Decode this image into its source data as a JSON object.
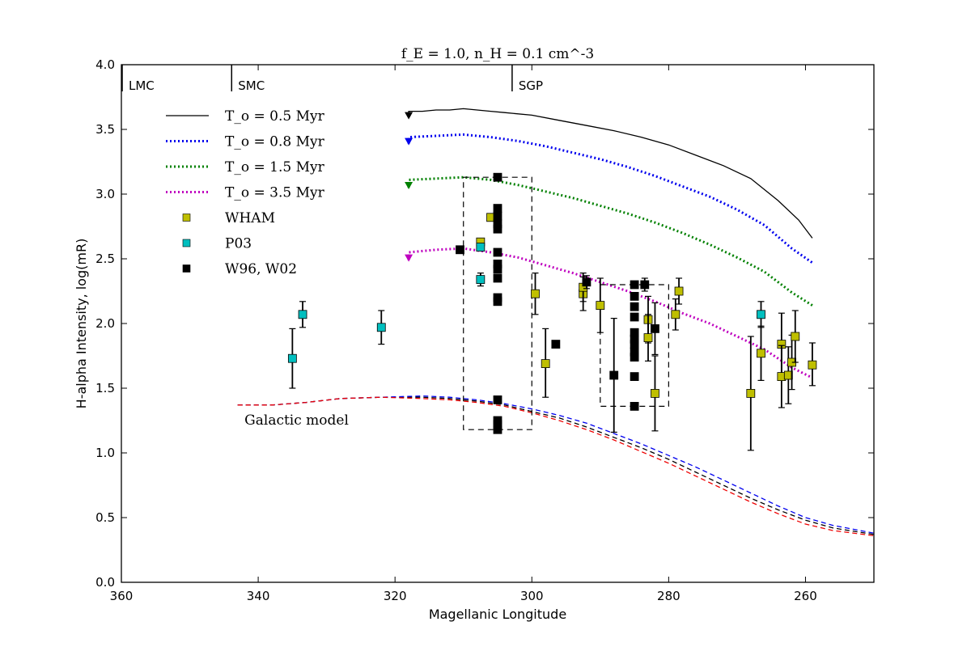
{
  "chart_data": {
    "type": "scatter",
    "title": "f_E = 1.0,  n_H = 0.1 cm^-3",
    "xlabel": "Magellanic Longitude",
    "ylabel": "H-alpha Intensity, log(mR)",
    "xlim": [
      360,
      250
    ],
    "ylim": [
      0.0,
      4.0
    ],
    "x_ticks": [
      360,
      340,
      320,
      300,
      280,
      260
    ],
    "y_ticks": [
      0.0,
      0.5,
      1.0,
      1.5,
      2.0,
      2.5,
      3.0,
      3.5,
      4.0
    ],
    "markers": [
      {
        "label": "LMC",
        "x": 360
      },
      {
        "label": "SMC",
        "x": 344
      },
      {
        "label": "SGP",
        "x": 303
      }
    ],
    "model_annotation": "Galactic model",
    "model_series": [
      {
        "name": "T_o = 0.5 Myr",
        "color": "#000000",
        "style": "solid",
        "arrow": true,
        "points": [
          [
            318,
            3.59
          ],
          [
            318,
            3.64
          ],
          [
            316,
            3.64
          ],
          [
            314,
            3.65
          ],
          [
            312,
            3.65
          ],
          [
            310,
            3.66
          ],
          [
            308,
            3.65
          ],
          [
            306,
            3.64
          ],
          [
            304,
            3.63
          ],
          [
            300,
            3.61
          ],
          [
            296,
            3.57
          ],
          [
            292,
            3.53
          ],
          [
            288,
            3.49
          ],
          [
            284,
            3.44
          ],
          [
            280,
            3.38
          ],
          [
            276,
            3.3
          ],
          [
            272,
            3.22
          ],
          [
            268,
            3.12
          ],
          [
            264,
            2.95
          ],
          [
            261,
            2.8
          ],
          [
            259,
            2.66
          ]
        ]
      },
      {
        "name": "T_o = 0.8 Myr",
        "color": "#0000ee",
        "style": "dotted",
        "arrow": true,
        "points": [
          [
            318,
            3.39
          ],
          [
            318,
            3.44
          ],
          [
            314,
            3.45
          ],
          [
            310,
            3.46
          ],
          [
            306,
            3.44
          ],
          [
            302,
            3.41
          ],
          [
            298,
            3.37
          ],
          [
            294,
            3.32
          ],
          [
            290,
            3.27
          ],
          [
            286,
            3.21
          ],
          [
            282,
            3.14
          ],
          [
            278,
            3.06
          ],
          [
            274,
            2.98
          ],
          [
            270,
            2.88
          ],
          [
            266,
            2.76
          ],
          [
            262,
            2.58
          ],
          [
            259,
            2.47
          ]
        ]
      },
      {
        "name": "T_o = 1.5 Myr",
        "color": "#008000",
        "style": "dotted",
        "arrow": true,
        "points": [
          [
            318,
            3.05
          ],
          [
            318,
            3.11
          ],
          [
            314,
            3.12
          ],
          [
            310,
            3.13
          ],
          [
            306,
            3.11
          ],
          [
            302,
            3.07
          ],
          [
            298,
            3.02
          ],
          [
            294,
            2.97
          ],
          [
            290,
            2.91
          ],
          [
            286,
            2.85
          ],
          [
            282,
            2.78
          ],
          [
            278,
            2.7
          ],
          [
            274,
            2.61
          ],
          [
            270,
            2.51
          ],
          [
            266,
            2.4
          ],
          [
            262,
            2.24
          ],
          [
            259,
            2.14
          ]
        ]
      },
      {
        "name": "T_o = 3.5 Myr",
        "color": "#bf00bf",
        "style": "dotted",
        "arrow": true,
        "points": [
          [
            318,
            2.49
          ],
          [
            318,
            2.55
          ],
          [
            314,
            2.57
          ],
          [
            310,
            2.58
          ],
          [
            306,
            2.55
          ],
          [
            302,
            2.51
          ],
          [
            298,
            2.45
          ],
          [
            294,
            2.39
          ],
          [
            290,
            2.32
          ],
          [
            286,
            2.25
          ],
          [
            282,
            2.17
          ],
          [
            278,
            2.08
          ],
          [
            274,
            2.0
          ],
          [
            270,
            1.9
          ],
          [
            266,
            1.8
          ],
          [
            262,
            1.66
          ],
          [
            259,
            1.58
          ]
        ]
      },
      {
        "name": "Galactic model (black)",
        "color": "#000000",
        "style": "dashed",
        "arrow": false,
        "points": [
          [
            343,
            1.37
          ],
          [
            338,
            1.37
          ],
          [
            333,
            1.39
          ],
          [
            328,
            1.42
          ],
          [
            322,
            1.43
          ],
          [
            316,
            1.43
          ],
          [
            312,
            1.42
          ],
          [
            308,
            1.4
          ],
          [
            304,
            1.37
          ],
          [
            300,
            1.32
          ],
          [
            296,
            1.27
          ],
          [
            292,
            1.2
          ],
          [
            288,
            1.12
          ],
          [
            284,
            1.04
          ],
          [
            280,
            0.95
          ],
          [
            276,
            0.85
          ],
          [
            272,
            0.75
          ],
          [
            268,
            0.65
          ],
          [
            264,
            0.56
          ],
          [
            260,
            0.48
          ],
          [
            256,
            0.42
          ],
          [
            250,
            0.37
          ]
        ]
      },
      {
        "name": "Galactic model (blue)",
        "color": "#0000ee",
        "style": "dashed",
        "arrow": false,
        "points": [
          [
            343,
            1.37
          ],
          [
            338,
            1.37
          ],
          [
            333,
            1.39
          ],
          [
            328,
            1.42
          ],
          [
            322,
            1.43
          ],
          [
            316,
            1.44
          ],
          [
            312,
            1.43
          ],
          [
            308,
            1.41
          ],
          [
            304,
            1.38
          ],
          [
            300,
            1.34
          ],
          [
            296,
            1.29
          ],
          [
            292,
            1.23
          ],
          [
            288,
            1.15
          ],
          [
            284,
            1.07
          ],
          [
            280,
            0.98
          ],
          [
            276,
            0.89
          ],
          [
            272,
            0.79
          ],
          [
            268,
            0.69
          ],
          [
            264,
            0.59
          ],
          [
            260,
            0.5
          ],
          [
            256,
            0.44
          ],
          [
            250,
            0.38
          ]
        ]
      },
      {
        "name": "Galactic model (red)",
        "color": "#ee0000",
        "style": "dashed",
        "arrow": false,
        "points": [
          [
            343,
            1.37
          ],
          [
            338,
            1.37
          ],
          [
            333,
            1.39
          ],
          [
            328,
            1.42
          ],
          [
            322,
            1.43
          ],
          [
            316,
            1.42
          ],
          [
            312,
            1.41
          ],
          [
            308,
            1.39
          ],
          [
            304,
            1.36
          ],
          [
            300,
            1.31
          ],
          [
            296,
            1.25
          ],
          [
            292,
            1.18
          ],
          [
            288,
            1.1
          ],
          [
            284,
            1.01
          ],
          [
            280,
            0.92
          ],
          [
            276,
            0.82
          ],
          [
            272,
            0.72
          ],
          [
            268,
            0.62
          ],
          [
            264,
            0.53
          ],
          [
            260,
            0.45
          ],
          [
            256,
            0.4
          ],
          [
            250,
            0.36
          ]
        ]
      }
    ],
    "legend": [
      {
        "label": "T_o = 0.5 Myr",
        "kind": "line",
        "color": "#000000",
        "style": "solid"
      },
      {
        "label": "T_o = 0.8 Myr",
        "kind": "line",
        "color": "#0000ee",
        "style": "dotted"
      },
      {
        "label": "T_o = 1.5 Myr",
        "kind": "line",
        "color": "#008000",
        "style": "dotted"
      },
      {
        "label": "T_o = 3.5 Myr",
        "kind": "line",
        "color": "#bf00bf",
        "style": "dotted"
      },
      {
        "label": "WHAM",
        "kind": "marker",
        "color": "#bfbf00"
      },
      {
        "label": "P03",
        "kind": "marker",
        "color": "#00bfbf"
      },
      {
        "label": "W96, W02",
        "kind": "marker",
        "color": "#000000"
      }
    ],
    "data_series": [
      {
        "name": "WHAM",
        "color": "#bfbf00",
        "points": [
          {
            "x": 306,
            "y": 2.82
          },
          {
            "x": 307.5,
            "y": 2.63
          },
          {
            "x": 299.5,
            "y": 2.23,
            "lo": 0.16,
            "hi": 0.16
          },
          {
            "x": 298,
            "y": 1.69,
            "lo": 0.26,
            "hi": 0.27
          },
          {
            "x": 292.5,
            "y": 2.23,
            "lo": 0.13,
            "hi": 0.13
          },
          {
            "x": 292.5,
            "y": 2.28,
            "lo": 0.11,
            "hi": 0.11
          },
          {
            "x": 290,
            "y": 2.14,
            "lo": 0.21,
            "hi": 0.21
          },
          {
            "x": 283,
            "y": 2.03,
            "lo": 0.18,
            "hi": 0.18
          },
          {
            "x": 283,
            "y": 1.89,
            "lo": 0.18,
            "hi": 0.18
          },
          {
            "x": 282,
            "y": 1.46,
            "lo": 0.29,
            "hi": 0.29
          },
          {
            "x": 279,
            "y": 2.07,
            "lo": 0.12,
            "hi": 0.12
          },
          {
            "x": 278.5,
            "y": 2.25,
            "lo": 0.1,
            "hi": 0.1
          },
          {
            "x": 268,
            "y": 1.46,
            "lo": 0.44,
            "hi": 0.44
          },
          {
            "x": 266.5,
            "y": 1.77,
            "lo": 0.21,
            "hi": 0.21
          },
          {
            "x": 263.5,
            "y": 1.84,
            "lo": 0.24,
            "hi": 0.24
          },
          {
            "x": 263.5,
            "y": 1.59,
            "lo": 0.24,
            "hi": 0.24
          },
          {
            "x": 262.5,
            "y": 1.6,
            "lo": 0.22,
            "hi": 0.22
          },
          {
            "x": 262,
            "y": 1.7,
            "lo": 0.21,
            "hi": 0.21
          },
          {
            "x": 261.5,
            "y": 1.9,
            "lo": 0.2,
            "hi": 0.2
          },
          {
            "x": 259,
            "y": 1.68,
            "lo": 0.16,
            "hi": 0.17
          }
        ]
      },
      {
        "name": "P03",
        "color": "#00bfbf",
        "points": [
          {
            "x": 335,
            "y": 1.73,
            "lo": 0.23,
            "hi": 0.23
          },
          {
            "x": 333.5,
            "y": 2.07,
            "lo": 0.1,
            "hi": 0.1
          },
          {
            "x": 322,
            "y": 1.97,
            "lo": 0.13,
            "hi": 0.13
          },
          {
            "x": 307.5,
            "y": 2.59
          },
          {
            "x": 307.5,
            "y": 2.34,
            "lo": 0.05,
            "hi": 0.05
          },
          {
            "x": 266.5,
            "y": 2.07,
            "lo": 0.1,
            "hi": 0.1
          }
        ]
      },
      {
        "name": "W96, W02",
        "color": "#000000",
        "points": [
          {
            "x": 310.5,
            "y": 2.57
          },
          {
            "x": 305,
            "y": 3.13
          },
          {
            "x": 305,
            "y": 2.89
          },
          {
            "x": 305,
            "y": 2.83
          },
          {
            "x": 305,
            "y": 2.77
          },
          {
            "x": 305,
            "y": 2.73
          },
          {
            "x": 305,
            "y": 2.55
          },
          {
            "x": 305,
            "y": 2.46
          },
          {
            "x": 305,
            "y": 2.42
          },
          {
            "x": 305,
            "y": 2.35
          },
          {
            "x": 305,
            "y": 2.2
          },
          {
            "x": 305,
            "y": 2.17
          },
          {
            "x": 305,
            "y": 1.41
          },
          {
            "x": 305,
            "y": 1.25
          },
          {
            "x": 305,
            "y": 1.22
          },
          {
            "x": 305,
            "y": 1.18
          },
          {
            "x": 296.5,
            "y": 1.84
          },
          {
            "x": 292,
            "y": 2.32,
            "lo": 0.05,
            "hi": 0.05
          },
          {
            "x": 288,
            "y": 1.6,
            "lo": 0.44,
            "hi": 0.44
          },
          {
            "x": 285,
            "y": 2.3
          },
          {
            "x": 285,
            "y": 2.21
          },
          {
            "x": 285,
            "y": 2.13
          },
          {
            "x": 285,
            "y": 2.05
          },
          {
            "x": 285,
            "y": 1.93
          },
          {
            "x": 285,
            "y": 1.88
          },
          {
            "x": 285,
            "y": 1.84
          },
          {
            "x": 285,
            "y": 1.78
          },
          {
            "x": 285,
            "y": 1.74
          },
          {
            "x": 285,
            "y": 1.59
          },
          {
            "x": 285,
            "y": 1.36
          },
          {
            "x": 283.5,
            "y": 2.3,
            "lo": 0.05,
            "hi": 0.05
          },
          {
            "x": 282,
            "y": 1.96,
            "lo": 0.2,
            "hi": 0.2
          }
        ]
      }
    ],
    "boxes": [
      {
        "x0": 310,
        "x1": 300,
        "y0": 1.18,
        "y1": 3.13
      },
      {
        "x0": 290,
        "x1": 280,
        "y0": 1.36,
        "y1": 2.3
      }
    ]
  }
}
